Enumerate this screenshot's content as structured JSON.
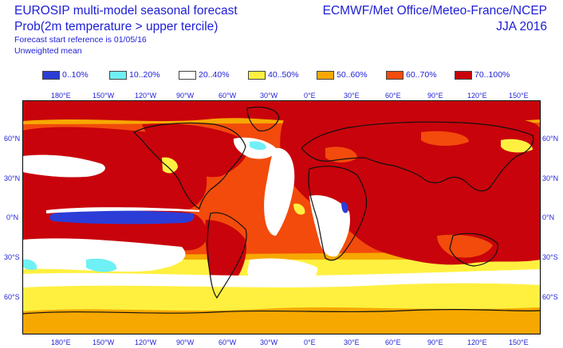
{
  "header": {
    "left_line1": "EUROSIP multi-model seasonal forecast",
    "left_line2": "Prob(2m temperature > upper tercile)",
    "left_line3": "Forecast start reference is 01/05/16",
    "left_line4": "Unweighted mean",
    "right_line1": "ECMWF/Met Office/Meteo-France/NCEP",
    "right_line2": "JJA 2016"
  },
  "legend": [
    {
      "label": "0..10%",
      "color": "#2b3dd6"
    },
    {
      "label": "10..20%",
      "color": "#6ef0f5"
    },
    {
      "label": "20..40%",
      "color": "#ffffff"
    },
    {
      "label": "40..50%",
      "color": "#fff040"
    },
    {
      "label": "50..60%",
      "color": "#f6a800"
    },
    {
      "label": "60..70%",
      "color": "#f24b0c"
    },
    {
      "label": "70..100%",
      "color": "#c8030b"
    }
  ],
  "axes": {
    "lon_labels": [
      "180°E",
      "150°W",
      "120°W",
      "90°W",
      "60°W",
      "30°W",
      "0°E",
      "30°E",
      "60°E",
      "90°E",
      "120°E",
      "150°E"
    ],
    "lat_labels": [
      "60°N",
      "30°N",
      "0°N",
      "30°S",
      "60°S"
    ]
  }
}
